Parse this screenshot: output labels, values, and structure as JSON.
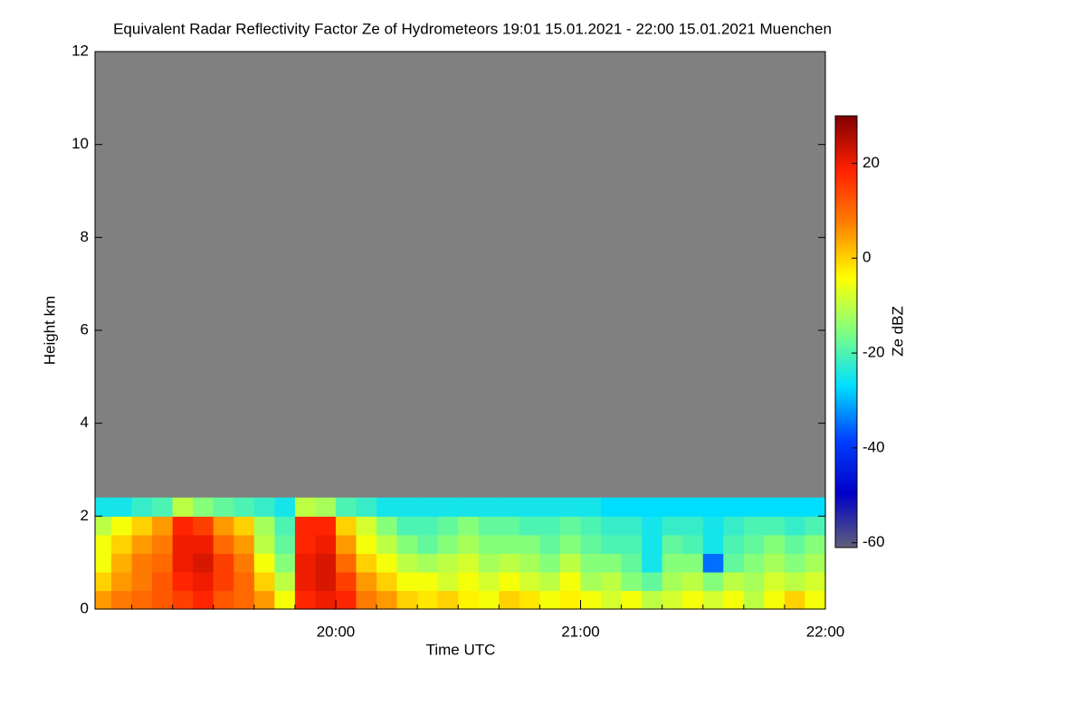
{
  "chart_data": {
    "type": "heatmap",
    "title": "Equivalent Radar Reflectivity Factor Ze of Hydrometeors   19:01 15.01.2021 - 22:00 15.01.2021 Muenchen",
    "x_label": "Time UTC",
    "y_label": "Height km",
    "colorbar_label": "Ze dBZ",
    "xlim": [
      1,
      180
    ],
    "ylim": [
      0,
      12
    ],
    "clim": [
      -61,
      30
    ],
    "xticks": [
      {
        "value": 60,
        "label": "20:00"
      },
      {
        "value": 120,
        "label": "21:00"
      },
      {
        "value": 180,
        "label": "22:00"
      }
    ],
    "xminorticks": [
      10,
      20,
      30,
      40,
      50,
      70,
      80,
      90,
      100,
      110,
      130,
      140,
      150,
      160,
      170
    ],
    "yticks": [
      0,
      2,
      4,
      6,
      8,
      10,
      12
    ],
    "cticks": [
      -60,
      -40,
      -20,
      0,
      20
    ],
    "no_data_color": "#808080",
    "colormap": [
      "#60607a",
      "#0000c8",
      "#0040ff",
      "#00e0ff",
      "#80ff80",
      "#ffff00",
      "#ff8000",
      "#ff2000",
      "#800000"
    ],
    "xbins": [
      1,
      5,
      10,
      15,
      20,
      25,
      30,
      35,
      40,
      45,
      50,
      55,
      60,
      65,
      70,
      75,
      80,
      85,
      90,
      95,
      100,
      105,
      110,
      115,
      120,
      125,
      130,
      135,
      140,
      145,
      150,
      155,
      160,
      165,
      170,
      175,
      180
    ],
    "ybins": [
      0,
      0.4,
      0.8,
      1.2,
      1.6,
      2.0,
      2.4
    ],
    "values": [
      [
        5,
        8,
        10,
        12,
        15,
        18,
        12,
        10,
        5,
        -5,
        18,
        20,
        18,
        8,
        5,
        0,
        -2,
        0,
        -3,
        -5,
        0,
        -2,
        -5,
        -3,
        -5,
        -8,
        -5,
        -10,
        -8,
        -5,
        -8,
        -5,
        -10,
        -5,
        0,
        -5
      ],
      [
        0,
        5,
        8,
        12,
        18,
        20,
        15,
        10,
        0,
        -10,
        20,
        22,
        15,
        5,
        0,
        -5,
        -5,
        -8,
        -5,
        -8,
        -5,
        -8,
        -10,
        -5,
        -12,
        -10,
        -15,
        -18,
        -12,
        -10,
        -15,
        -10,
        -12,
        -8,
        -10,
        -8
      ],
      [
        -5,
        3,
        8,
        10,
        20,
        22,
        15,
        8,
        -5,
        -15,
        20,
        22,
        10,
        0,
        -5,
        -10,
        -12,
        -10,
        -8,
        -12,
        -10,
        -12,
        -15,
        -10,
        -15,
        -15,
        -18,
        -25,
        -15,
        -15,
        -35,
        -18,
        -15,
        -12,
        -15,
        -12
      ],
      [
        -5,
        0,
        5,
        8,
        20,
        20,
        10,
        5,
        -10,
        -18,
        18,
        20,
        5,
        -5,
        -10,
        -15,
        -18,
        -15,
        -12,
        -15,
        -15,
        -15,
        -18,
        -15,
        -18,
        -20,
        -20,
        -25,
        -18,
        -20,
        -25,
        -20,
        -18,
        -15,
        -18,
        -15
      ],
      [
        -10,
        -5,
        0,
        5,
        18,
        15,
        5,
        0,
        -12,
        -20,
        18,
        18,
        0,
        -8,
        -15,
        -20,
        -20,
        -18,
        -15,
        -18,
        -18,
        -20,
        -20,
        -18,
        -20,
        -22,
        -22,
        -25,
        -22,
        -22,
        -25,
        -22,
        -20,
        -20,
        -22,
        -20
      ],
      [
        -25,
        -25,
        -22,
        -20,
        -10,
        -15,
        -18,
        -20,
        -22,
        -25,
        -10,
        -12,
        -20,
        -22,
        -25,
        -25,
        -25,
        -25,
        -25,
        -25,
        -25,
        -25,
        -25,
        -25,
        -25,
        -27,
        -27,
        -27,
        -27,
        -27,
        -27,
        -27,
        -27,
        -27,
        -27,
        -27
      ]
    ]
  }
}
